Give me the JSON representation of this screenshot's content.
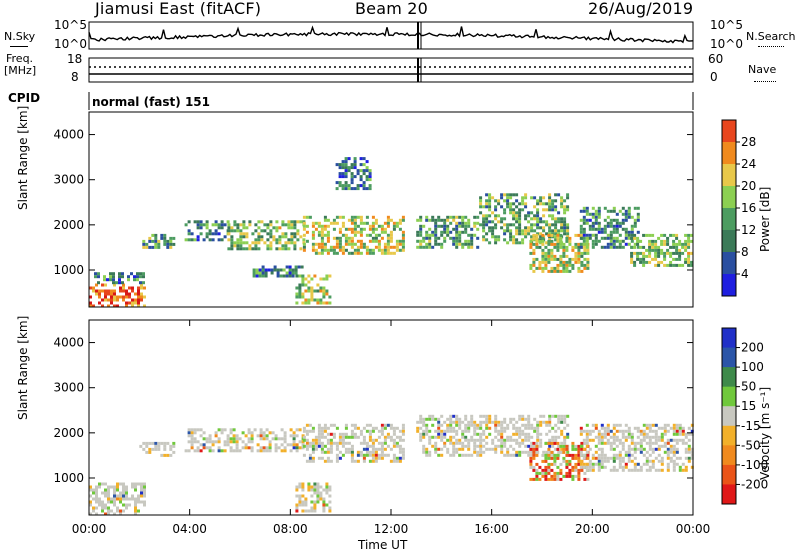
{
  "header": {
    "station": "Jiamusi East (fitACF)",
    "beam": "Beam 20",
    "date": "26/Aug/2019"
  },
  "top_panels": {
    "nsky_label": "N.Sky",
    "nsky_ticks": [
      "10^5",
      "10^0"
    ],
    "nsearch_label": "N.Search",
    "nsearch_ticks": [
      "10^5",
      "10^0"
    ],
    "freq_label_1": "Freq.",
    "freq_label_2": "[MHz]",
    "freq_ticks": [
      "18",
      "8"
    ],
    "nave_label": "Nave",
    "nave_ticks": [
      "60",
      "0"
    ],
    "cpid_label": "CPID",
    "cpid_value": "normal (fast) 151"
  },
  "colors": {
    "power_scale": [
      "#1f1fe0",
      "#2a4fa0",
      "#3b7a58",
      "#4c9c60",
      "#8ccf52",
      "#e8c84a",
      "#f08a1e",
      "#e8461e",
      "#d81818"
    ],
    "velocity_scale": [
      "#2030c8",
      "#2b55a8",
      "#3e8a4a",
      "#70c83c",
      "#c8c8c0",
      "#f2b02a",
      "#f08a1e",
      "#ea5418",
      "#e01818"
    ]
  },
  "chart_data": [
    {
      "type": "heatmap",
      "quantity": "power",
      "ylabel": "Slant Range [km]",
      "xlabel": "",
      "ylim": [
        180,
        4500
      ],
      "yticks": [
        "1000",
        "2000",
        "3000",
        "4000"
      ],
      "colorbar_title": "Power [dB]",
      "colorbar_ticks": [
        "4",
        "8",
        "12",
        "16",
        "20",
        "24",
        "28"
      ],
      "regions": [
        {
          "t0": 0.0,
          "t1": 2.2,
          "r0": 200,
          "r1": 700,
          "intensity": 0.85
        },
        {
          "t0": 0.2,
          "t1": 2.2,
          "r0": 750,
          "r1": 950,
          "intensity": 0.25
        },
        {
          "t0": 2.0,
          "t1": 3.4,
          "r0": 1500,
          "r1": 1800,
          "intensity": 0.35
        },
        {
          "t0": 3.8,
          "t1": 5.5,
          "r0": 1700,
          "r1": 2100,
          "intensity": 0.3
        },
        {
          "t0": 5.5,
          "t1": 8.5,
          "r0": 1500,
          "r1": 2100,
          "intensity": 0.45
        },
        {
          "t0": 6.5,
          "t1": 8.5,
          "r0": 900,
          "r1": 1100,
          "intensity": 0.25
        },
        {
          "t0": 8.2,
          "t1": 9.6,
          "r0": 300,
          "r1": 900,
          "intensity": 0.5
        },
        {
          "t0": 8.5,
          "t1": 12.5,
          "r0": 1350,
          "r1": 2200,
          "intensity": 0.55
        },
        {
          "t0": 9.8,
          "t1": 11.2,
          "r0": 2800,
          "r1": 3500,
          "intensity": 0.25
        },
        {
          "t0": 13.0,
          "t1": 15.5,
          "r0": 1500,
          "r1": 2200,
          "intensity": 0.35
        },
        {
          "t0": 15.5,
          "t1": 19.0,
          "r0": 1600,
          "r1": 2700,
          "intensity": 0.4
        },
        {
          "t0": 17.5,
          "t1": 19.8,
          "r0": 1000,
          "r1": 1800,
          "intensity": 0.55
        },
        {
          "t0": 19.5,
          "t1": 21.8,
          "r0": 1500,
          "r1": 2400,
          "intensity": 0.3
        },
        {
          "t0": 21.5,
          "t1": 24.0,
          "r0": 1100,
          "r1": 1800,
          "intensity": 0.45
        }
      ]
    },
    {
      "type": "heatmap",
      "quantity": "velocity",
      "ylabel": "Slant Range [km]",
      "xlabel": "Time UT",
      "ylim": [
        180,
        4500
      ],
      "yticks": [
        "1000",
        "2000",
        "3000",
        "4000"
      ],
      "xticks": [
        "00:00",
        "04:00",
        "08:00",
        "12:00",
        "16:00",
        "20:00",
        "00:00"
      ],
      "colorbar_title": "Velocity [m s⁻¹]",
      "colorbar_ticks": [
        "200",
        "100",
        "50",
        "15",
        "-15",
        "-50",
        "-100",
        "-200"
      ],
      "regions": [
        {
          "t0": 0.0,
          "t1": 2.2,
          "r0": 200,
          "r1": 900,
          "intensity": 0.5
        },
        {
          "t0": 2.0,
          "t1": 3.4,
          "r0": 1500,
          "r1": 1800,
          "intensity": 0.5
        },
        {
          "t0": 3.8,
          "t1": 8.5,
          "r0": 1600,
          "r1": 2100,
          "intensity": 0.5
        },
        {
          "t0": 8.2,
          "t1": 9.6,
          "r0": 300,
          "r1": 900,
          "intensity": 0.5
        },
        {
          "t0": 8.5,
          "t1": 12.5,
          "r0": 1350,
          "r1": 2200,
          "intensity": 0.55
        },
        {
          "t0": 13.0,
          "t1": 19.0,
          "r0": 1500,
          "r1": 2400,
          "intensity": 0.5
        },
        {
          "t0": 17.5,
          "t1": 19.8,
          "r0": 1000,
          "r1": 1800,
          "intensity": 0.8
        },
        {
          "t0": 19.5,
          "t1": 24.0,
          "r0": 1200,
          "r1": 2200,
          "intensity": 0.5
        }
      ]
    }
  ]
}
